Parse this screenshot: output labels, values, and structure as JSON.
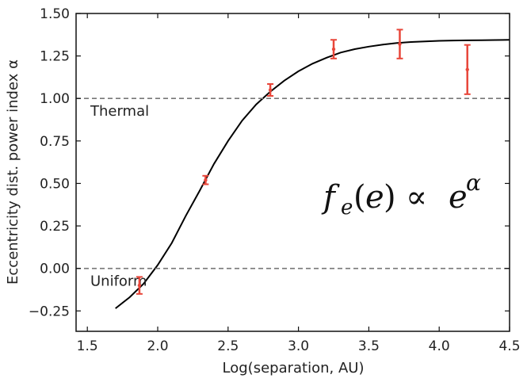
{
  "chart_data": {
    "type": "scatter",
    "xlabel": "Log(separation, AU)",
    "ylabel": "Eccentricity dist. power index α",
    "xlim": [
      1.42,
      4.5
    ],
    "ylim": [
      -0.37,
      1.5
    ],
    "xticks": [
      "1.5",
      "2.0",
      "2.5",
      "3.0",
      "3.5",
      "4.0",
      "4.5"
    ],
    "xtick_values": [
      1.5,
      2.0,
      2.5,
      3.0,
      3.5,
      4.0,
      4.5
    ],
    "yticks": [
      "−0.25",
      "0.00",
      "0.25",
      "0.50",
      "0.75",
      "1.00",
      "1.25",
      "1.50"
    ],
    "ytick_values": [
      -0.25,
      0.0,
      0.25,
      0.5,
      0.75,
      1.0,
      1.25,
      1.5
    ],
    "grid": false,
    "reference_lines": [
      {
        "y": 1.0,
        "label": "Thermal",
        "style": "dashed",
        "color": "#777777"
      },
      {
        "y": 0.0,
        "label": "Uniform",
        "style": "dashed",
        "color": "#777777"
      }
    ],
    "points": [
      {
        "x": 1.87,
        "y": -0.1,
        "err": 0.05
      },
      {
        "x": 2.34,
        "y": 0.52,
        "err": 0.025
      },
      {
        "x": 2.8,
        "y": 1.05,
        "err": 0.035
      },
      {
        "x": 3.25,
        "y": 1.29,
        "err": 0.055
      },
      {
        "x": 3.72,
        "y": 1.32,
        "err": 0.085
      },
      {
        "x": 4.2,
        "y": 1.17,
        "err": 0.145
      }
    ],
    "point_color": "#e8463a",
    "curve": {
      "color": "#000000",
      "x": [
        1.7,
        1.8,
        1.9,
        2.0,
        2.1,
        2.2,
        2.3,
        2.4,
        2.5,
        2.6,
        2.7,
        2.8,
        2.9,
        3.0,
        3.1,
        3.2,
        3.3,
        3.4,
        3.5,
        3.6,
        3.7,
        3.8,
        3.9,
        4.0,
        4.1,
        4.2,
        4.3,
        4.4,
        4.5
      ],
      "y": [
        -0.235,
        -0.17,
        -0.09,
        0.02,
        0.15,
        0.31,
        0.46,
        0.615,
        0.75,
        0.87,
        0.965,
        1.04,
        1.105,
        1.16,
        1.205,
        1.24,
        1.27,
        1.29,
        1.305,
        1.317,
        1.326,
        1.332,
        1.336,
        1.339,
        1.341,
        1.342,
        1.343,
        1.344,
        1.345
      ]
    }
  }
}
